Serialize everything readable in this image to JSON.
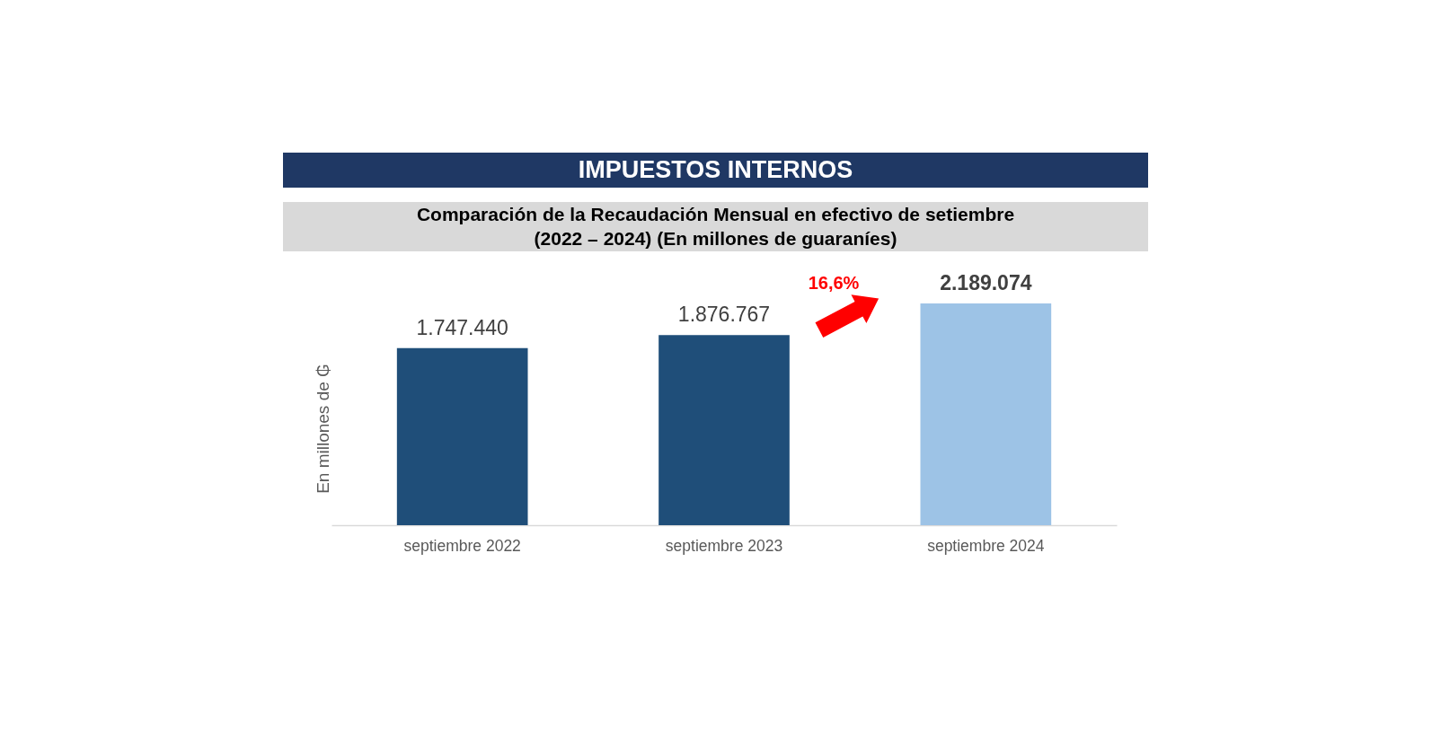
{
  "chart_data": {
    "type": "bar",
    "title": "IMPUESTOS INTERNOS",
    "subtitle": "Comparación de la Recaudación Mensual en efectivo de setiembre\n(2022 – 2024) (En millones de guaraníes)",
    "ylabel": "En millones de ₲",
    "categories": [
      "septiembre 2022",
      "septiembre 2023",
      "septiembre 2024"
    ],
    "values": [
      1747440,
      1876767,
      2189074
    ],
    "colors": [
      "#1f4e79",
      "#1f4e79",
      "#9dc3e6"
    ],
    "value_labels": [
      "1.747.440",
      "1.876.767",
      "2.189.074"
    ],
    "annotations": [
      "16,6%"
    ],
    "tick_labels": "x"
  }
}
